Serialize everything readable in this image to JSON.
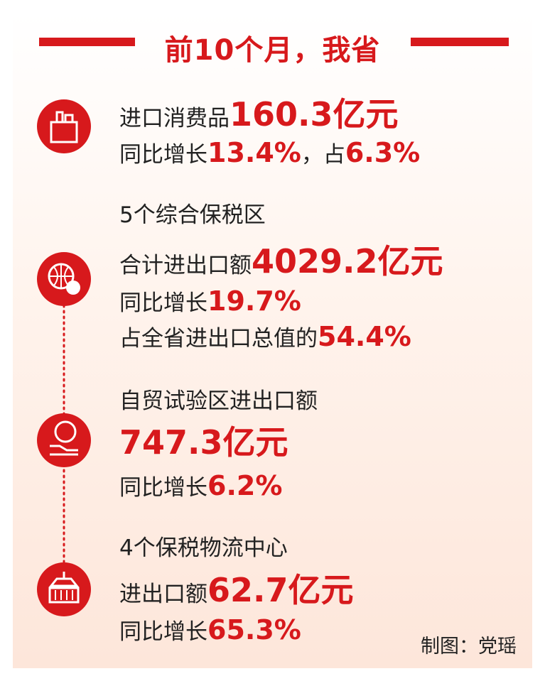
{
  "header": {
    "title": "前10个月，我省"
  },
  "sections": [
    {
      "lines": [
        [
          {
            "text": "进口消费品"
          },
          {
            "text": "160.3亿元",
            "emphasis": "large"
          }
        ],
        [
          {
            "text": "同比增长"
          },
          {
            "text": "13.4%",
            "emphasis": "medium"
          },
          {
            "text": "，占"
          },
          {
            "text": "6.3%",
            "emphasis": "medium"
          }
        ]
      ]
    },
    {
      "lines": [
        [
          {
            "text": "5个综合保税区"
          }
        ],
        [
          {
            "text": "合计进出口额"
          },
          {
            "text": "4029.2亿元",
            "emphasis": "large"
          }
        ],
        [
          {
            "text": "同比增长"
          },
          {
            "text": "19.7%",
            "emphasis": "medium"
          }
        ],
        [
          {
            "text": "占全省进出口总值的"
          },
          {
            "text": "54.4%",
            "emphasis": "medium"
          }
        ]
      ]
    },
    {
      "lines": [
        [
          {
            "text": "自贸试验区进出口额"
          }
        ],
        [
          {
            "text": "747.3亿元",
            "emphasis": "large"
          }
        ],
        [
          {
            "text": "同比增长"
          },
          {
            "text": "6.2%",
            "emphasis": "medium"
          }
        ]
      ]
    },
    {
      "lines": [
        [
          {
            "text": "4个保税物流中心"
          }
        ],
        [
          {
            "text": "进出口额"
          },
          {
            "text": "62.7亿元",
            "emphasis": "large"
          }
        ],
        [
          {
            "text": "同比增长"
          },
          {
            "text": "65.3%",
            "emphasis": "medium"
          }
        ]
      ]
    }
  ],
  "credit": "制图：党瑶"
}
